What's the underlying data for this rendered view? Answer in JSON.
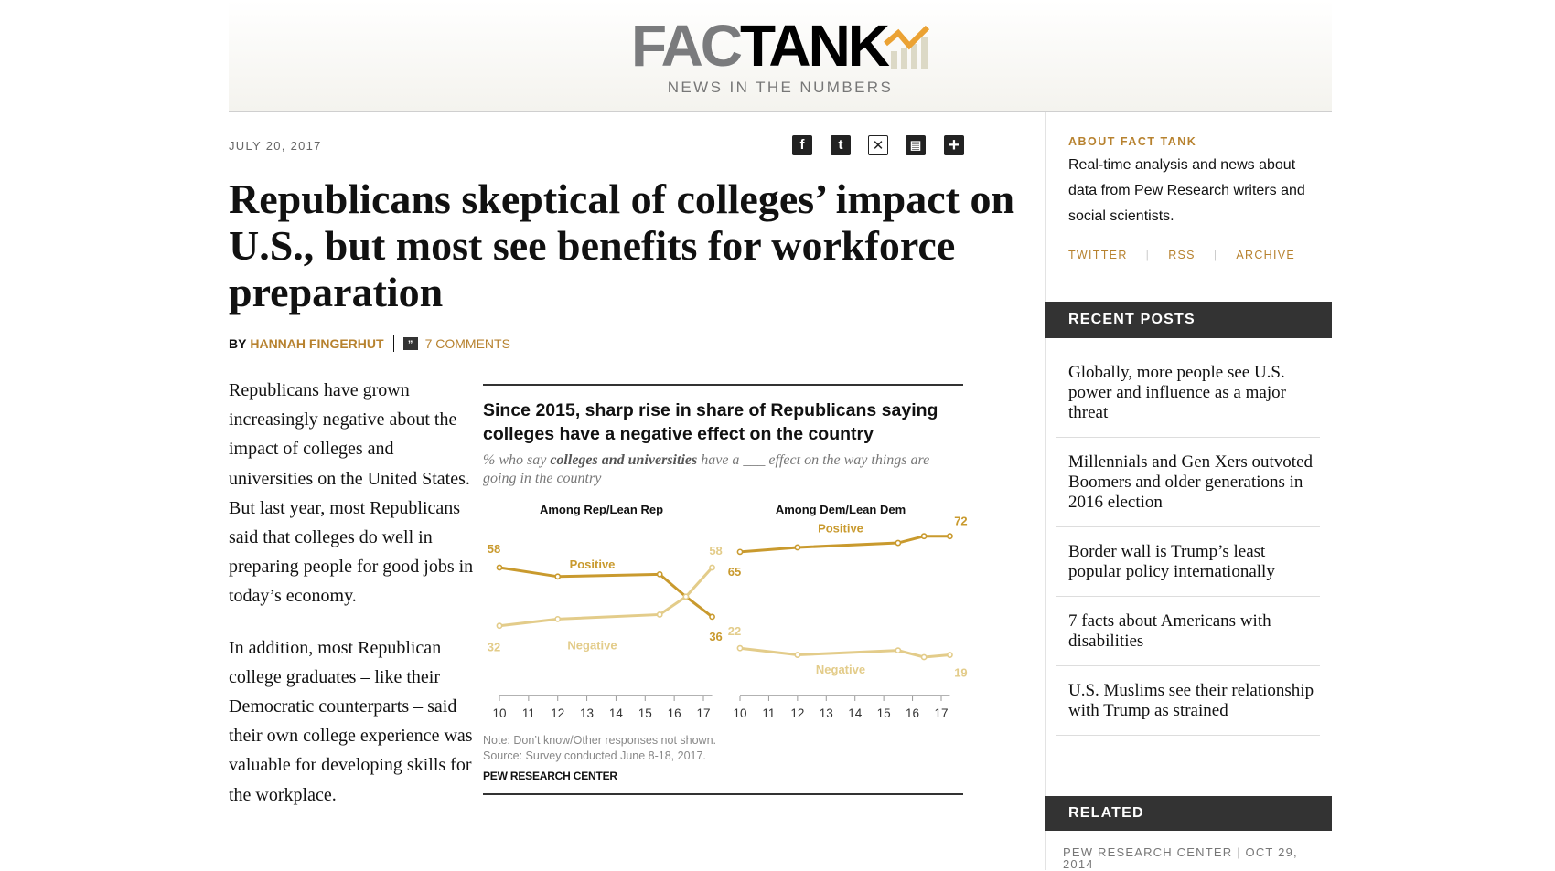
{
  "header": {
    "logo_fact": "FAC",
    "logo_tank": "TANK",
    "tagline": "NEWS IN THE NUMBERS"
  },
  "article": {
    "date": "JULY 20, 2017",
    "share_icons": [
      "facebook-icon",
      "twitter-icon",
      "email-icon",
      "print-icon",
      "plus-icon"
    ],
    "title": "Republicans skeptical of colleges’ impact on U.S., but most see benefits for workforce preparation",
    "by": "BY",
    "author": "HANNAH FINGERHUT",
    "comments": "7 COMMENTS",
    "paragraphs": [
      "Republicans have grown increasingly negative about the impact of colleges and universities on the United States. But last year, most Republicans said that colleges do well in preparing people for good jobs in today’s economy.",
      "In addition, most Republican college graduates – like their Democratic counterparts – said their own college experience was valuable for developing skills for the workplace."
    ]
  },
  "chart_data": {
    "type": "line",
    "title": "Since 2015, sharp rise in share of Republicans saying colleges have a negative effect on the country",
    "subtitle_pre": "% who say ",
    "subtitle_bold": "colleges and universities",
    "subtitle_post": " have a ___ effect on the way things are going in the country",
    "x_tick_labels": [
      "10",
      "11",
      "12",
      "13",
      "14",
      "15",
      "16",
      "17"
    ],
    "xlim": [
      2010,
      2017.3
    ],
    "ylim": [
      10,
      80
    ],
    "grid": false,
    "colors": {
      "positive": "#c99a2e",
      "negative": "#e3cc8a"
    },
    "panels": [
      {
        "title": "Among Rep/Lean Rep",
        "series": [
          {
            "name": "Positive",
            "x": [
              2010,
              2012,
              2015.5,
              2016.4,
              2017.3
            ],
            "values": [
              58,
              54,
              55,
              45,
              36
            ],
            "labels": [
              "58",
              "36"
            ]
          },
          {
            "name": "Negative",
            "x": [
              2010,
              2012,
              2015.5,
              2016.4,
              2017.3
            ],
            "values": [
              32,
              35,
              37,
              45,
              58
            ],
            "labels": [
              "32",
              "58"
            ]
          }
        ]
      },
      {
        "title": "Among Dem/Lean Dem",
        "series": [
          {
            "name": "Positive",
            "x": [
              2010,
              2012,
              2015.5,
              2016.4,
              2017.3
            ],
            "values": [
              65,
              67,
              69,
              72,
              72
            ],
            "labels": [
              "65",
              "72"
            ]
          },
          {
            "name": "Negative",
            "x": [
              2010,
              2012,
              2015.5,
              2016.4,
              2017.3
            ],
            "values": [
              22,
              19,
              21,
              18,
              19
            ],
            "labels": [
              "22",
              "19"
            ]
          }
        ]
      }
    ],
    "note": "Note: Don’t know/Other responses not shown.",
    "source": "Source: Survey conducted June 8-18, 2017.",
    "credit": "PEW RESEARCH CENTER"
  },
  "sidebar": {
    "about_heading": "ABOUT FACT TANK",
    "about_text": "Real-time analysis and news about data from Pew Research writers and social scientists.",
    "links": [
      "TWITTER",
      "RSS",
      "ARCHIVE"
    ],
    "recent_heading": "RECENT POSTS",
    "recent_posts": [
      "Globally, more people see U.S. power and influence as a major threat",
      "Millennials and Gen Xers outvoted Boomers and older generations in 2016 election",
      "Border wall is Trump’s least popular policy internationally",
      "7 facts about Americans with disabilities",
      "U.S. Muslims see their relationship with Trump as strained"
    ],
    "related_heading": "RELATED",
    "related_source": "PEW RESEARCH CENTER",
    "related_date": "OCT 29, 2014"
  }
}
